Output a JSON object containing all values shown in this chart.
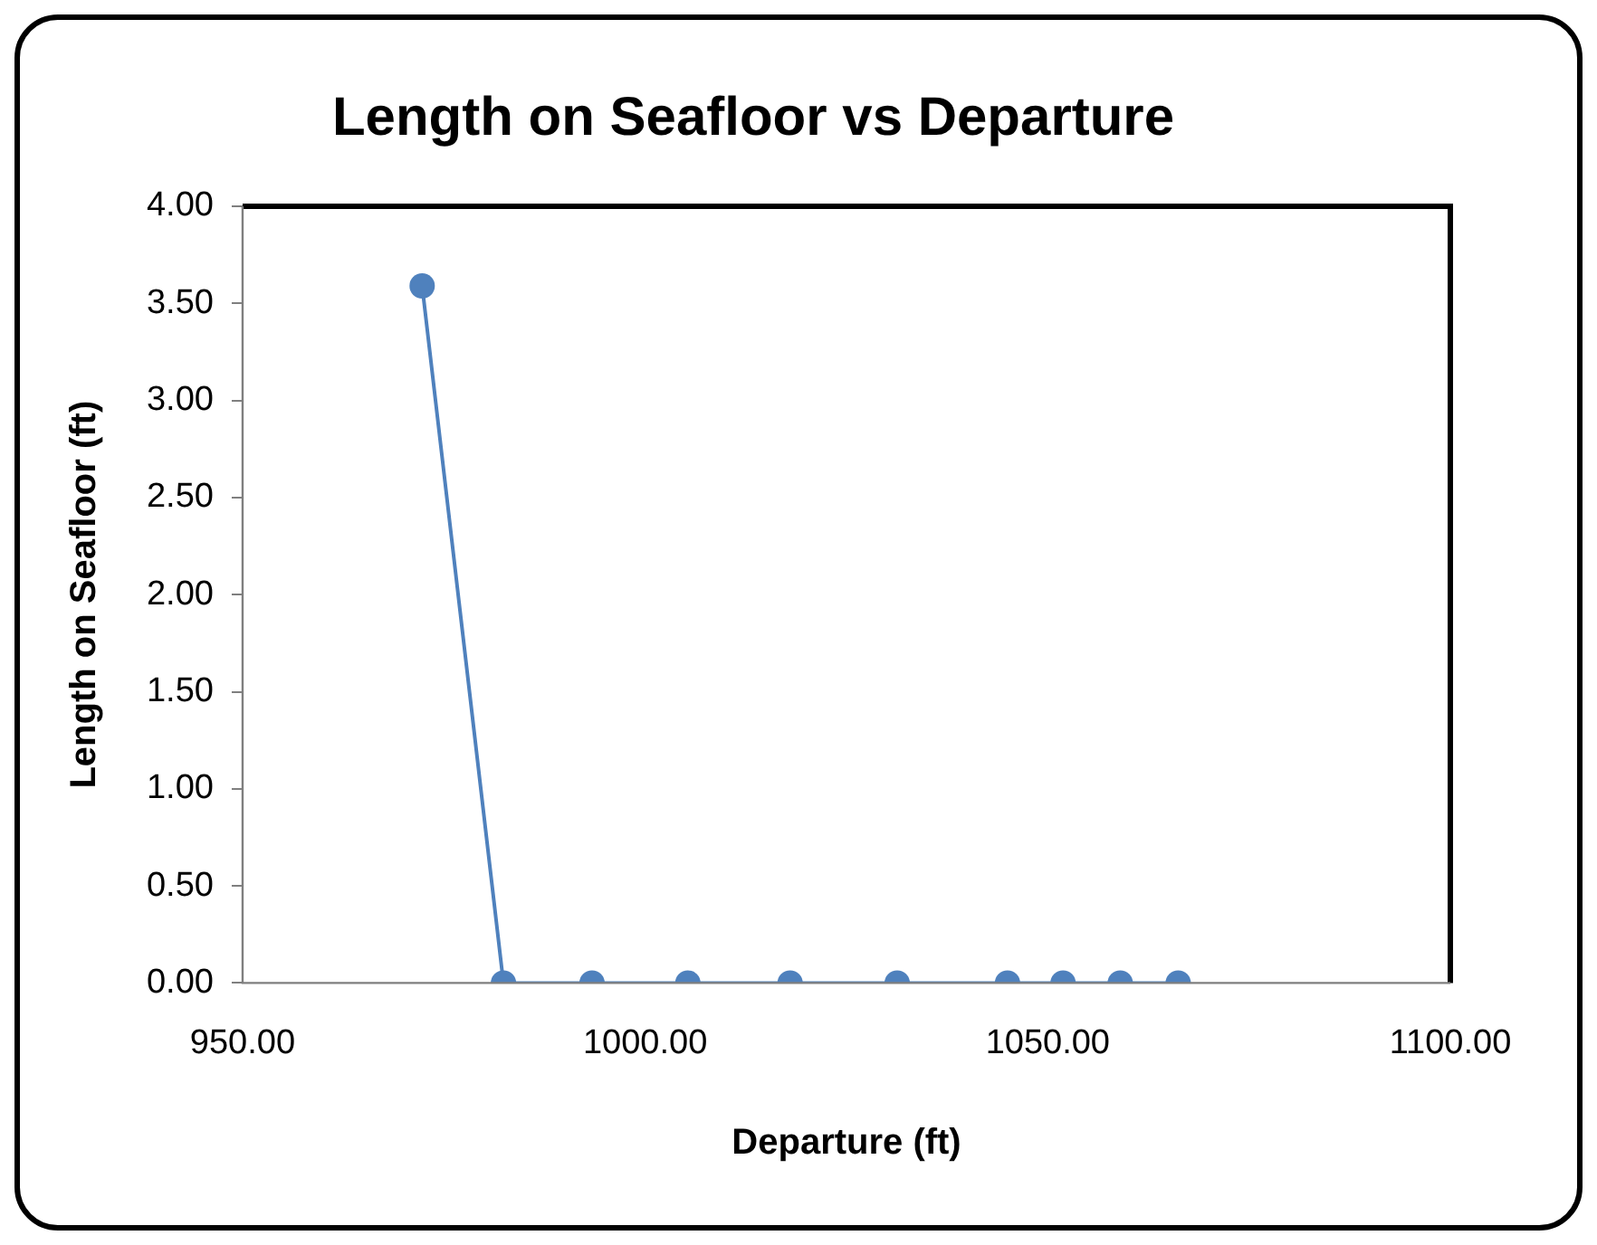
{
  "chart_data": {
    "type": "line",
    "title": "Length on Seafloor vs Departure",
    "xlabel": "Departure (ft)",
    "ylabel": "Length on Seafloor (ft)",
    "x": [
      972.3,
      982.4,
      993.4,
      1005.3,
      1018.0,
      1031.3,
      1045.0,
      1051.9,
      1059.0,
      1066.2
    ],
    "series": [
      {
        "color": "#4f81bd",
        "values": [
          3.59,
          0,
          0,
          0,
          0,
          0,
          0,
          0,
          0,
          0
        ]
      }
    ],
    "xlim": [
      950,
      1100
    ],
    "xticks": [
      {
        "value": 950,
        "label": "950.00"
      },
      {
        "value": 1000,
        "label": "1000.00"
      },
      {
        "value": 1050,
        "label": "1050.00"
      },
      {
        "value": 1100,
        "label": "1100.00"
      }
    ],
    "ylim": [
      0,
      4
    ],
    "yticks": [
      {
        "value": 0,
        "label": "0.00"
      },
      {
        "value": 0.5,
        "label": "0.50"
      },
      {
        "value": 1,
        "label": "1.00"
      },
      {
        "value": 1.5,
        "label": "1.50"
      },
      {
        "value": 2,
        "label": "2.00"
      },
      {
        "value": 2.5,
        "label": "2.50"
      },
      {
        "value": 3,
        "label": "3.00"
      },
      {
        "value": 3.5,
        "label": "3.50"
      },
      {
        "value": 4,
        "label": "4.00"
      }
    ],
    "grid": false,
    "legend": false,
    "marker": "circle",
    "line_style": "solid"
  }
}
